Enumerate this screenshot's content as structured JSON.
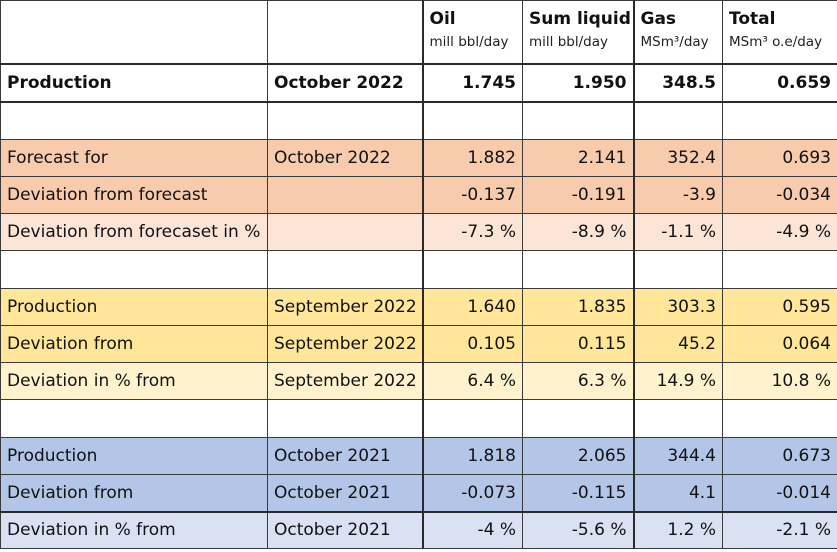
{
  "header": {
    "columns": [
      {
        "name": "",
        "unit": ""
      },
      {
        "name": "",
        "unit": ""
      },
      {
        "name": "Oil",
        "unit": "mill bbl/day"
      },
      {
        "name": "Sum liquid",
        "unit": "mill bbl/day"
      },
      {
        "name": "Gas",
        "unit": "MSm³/day"
      },
      {
        "name": "Total",
        "unit": "MSm³ o.e/day"
      }
    ]
  },
  "production": {
    "label": "Production",
    "period": "October 2022",
    "oil": "1.745",
    "sum_liquid": "1.950",
    "gas": "348.5",
    "total": "0.659"
  },
  "forecast": [
    {
      "label": "Forecast for",
      "period": "October 2022",
      "oil": "1.882",
      "sum_liquid": "2.141",
      "gas": "352.4",
      "total": "0.693"
    },
    {
      "label": "Deviation from forecast",
      "period": "",
      "oil": "-0.137",
      "sum_liquid": "-0.191",
      "gas": "-3.9",
      "total": "-0.034"
    },
    {
      "label": "Deviation from forecaset in %",
      "period": "",
      "oil": "-7.3 %",
      "sum_liquid": "-8.9 %",
      "gas": "-1.1 %",
      "total": "-4.9 %"
    }
  ],
  "previous_month": [
    {
      "label": "Production",
      "period": "September 2022",
      "oil": "1.640",
      "sum_liquid": "1.835",
      "gas": "303.3",
      "total": "0.595"
    },
    {
      "label": "Deviation from",
      "period": "September 2022",
      "oil": "0.105",
      "sum_liquid": "0.115",
      "gas": "45.2",
      "total": "0.064"
    },
    {
      "label": "Deviation in % from",
      "period": "September 2022",
      "oil": "6.4 %",
      "sum_liquid": "6.3 %",
      "gas": "14.9 %",
      "total": "10.8 %"
    }
  ],
  "previous_year": [
    {
      "label": "Production",
      "period": "October 2021",
      "oil": "1.818",
      "sum_liquid": "2.065",
      "gas": "344.4",
      "total": "0.673"
    },
    {
      "label": "Deviation from",
      "period": "October 2021",
      "oil": "-0.073",
      "sum_liquid": "-0.115",
      "gas": "4.1",
      "total": "-0.014"
    },
    {
      "label": "Deviation in % from",
      "period": "October 2021",
      "oil": "-4 %",
      "sum_liquid": "-5.6 %",
      "gas": "1.2 %",
      "total": "-2.1 %"
    }
  ],
  "colors": {
    "forecast_dark": "#f8cbad",
    "forecast_light": "#fce4d6",
    "prev_month_dark": "#ffe699",
    "prev_month_light": "#fff2cc",
    "prev_year_dark": "#b4c6e7",
    "prev_year_light": "#d9e1f2"
  }
}
